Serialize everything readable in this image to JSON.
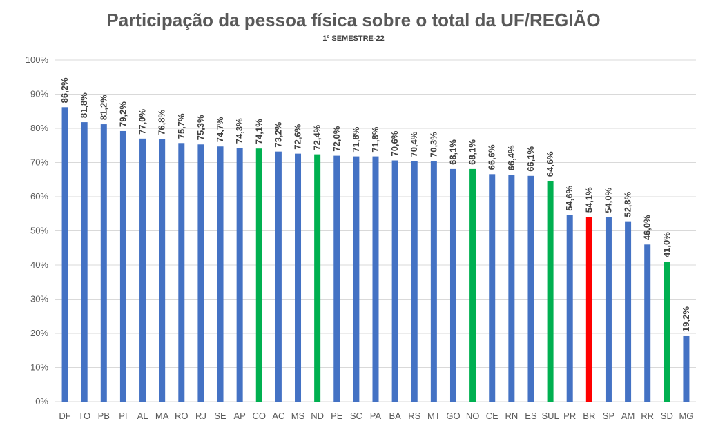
{
  "chart_data": {
    "type": "bar",
    "title": "Participação da pessoa física sobre o total da UF/REGIÃO",
    "subtitle": "1º SEMESTRE-22",
    "xlabel": "",
    "ylabel": "",
    "ylim": [
      0,
      100
    ],
    "yticks": [
      "0%",
      "10%",
      "20%",
      "30%",
      "40%",
      "50%",
      "60%",
      "70%",
      "80%",
      "90%",
      "100%"
    ],
    "grid": true,
    "categories": [
      "DF",
      "TO",
      "PB",
      "PI",
      "AL",
      "MA",
      "RO",
      "RJ",
      "SE",
      "AP",
      "CO",
      "AC",
      "MS",
      "ND",
      "PE",
      "SC",
      "PA",
      "BA",
      "RS",
      "MT",
      "GO",
      "NO",
      "CE",
      "RN",
      "ES",
      "SUL",
      "PR",
      "BR",
      "SP",
      "AM",
      "RR",
      "SD",
      "MG"
    ],
    "values": [
      86.2,
      81.8,
      81.2,
      79.2,
      77.0,
      76.8,
      75.7,
      75.3,
      74.7,
      74.3,
      74.1,
      73.2,
      72.6,
      72.4,
      72.0,
      71.8,
      71.8,
      70.6,
      70.4,
      70.3,
      68.1,
      68.1,
      66.6,
      66.4,
      66.1,
      64.6,
      54.6,
      54.1,
      54.0,
      52.8,
      46.0,
      41.0,
      19.2
    ],
    "data_labels": [
      "86,2%",
      "81,8%",
      "81,2%",
      "79,2%",
      "77,0%",
      "76,8%",
      "75,7%",
      "75,3%",
      "74,7%",
      "74,3%",
      "74,1%",
      "73,2%",
      "72,6%",
      "72,4%",
      "72,0%",
      "71,8%",
      "71,8%",
      "70,6%",
      "70,4%",
      "70,3%",
      "68,1%",
      "68,1%",
      "66,6%",
      "66,4%",
      "66,1%",
      "64,6%",
      "54,6%",
      "54,1%",
      "54,0%",
      "52,8%",
      "46,0%",
      "41,0%",
      "19,2%"
    ],
    "colors": {
      "default": "#4472c4",
      "region": "#00b050",
      "national": "#ff0000",
      "grid": "#d9d9d9",
      "title": "#595959"
    },
    "bar_color_keys": [
      "default",
      "default",
      "default",
      "default",
      "default",
      "default",
      "default",
      "default",
      "default",
      "default",
      "region",
      "default",
      "default",
      "region",
      "default",
      "default",
      "default",
      "default",
      "default",
      "default",
      "default",
      "region",
      "default",
      "default",
      "default",
      "region",
      "default",
      "national",
      "default",
      "default",
      "default",
      "region",
      "default"
    ]
  }
}
